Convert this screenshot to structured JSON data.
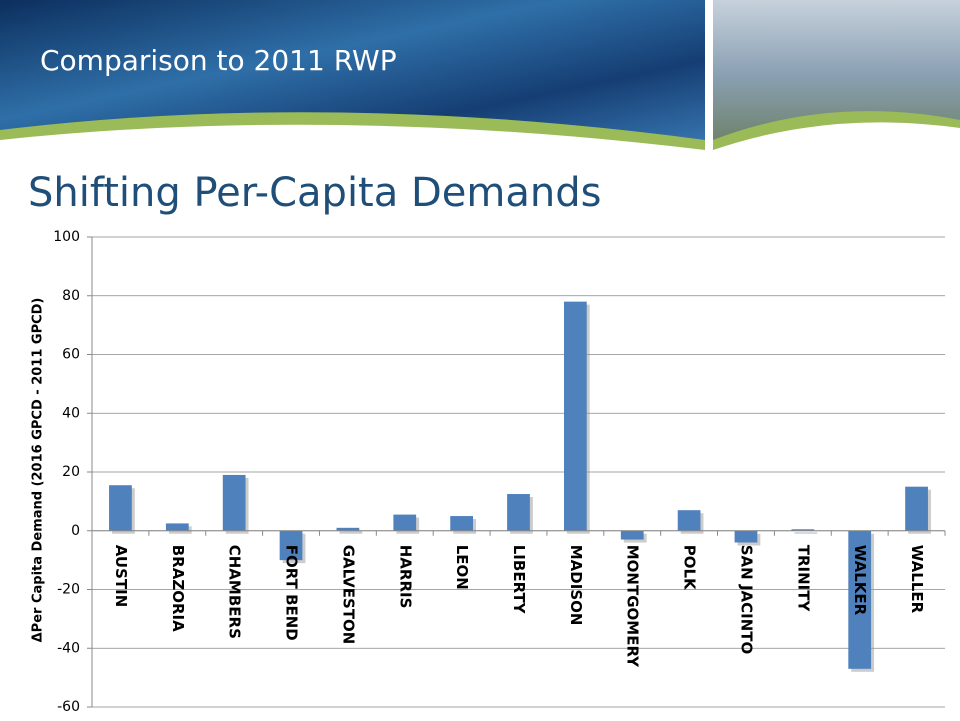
{
  "header": {
    "title": "Comparison to 2011 RWP"
  },
  "slide_title": "Shifting Per-Capita Demands",
  "chart_data": {
    "type": "bar",
    "y_label": "ΔPer Capita Demand (2016 GPCD - 2011 GPCD)",
    "categories": [
      "AUSTIN",
      "BRAZORIA",
      "CHAMBERS",
      "FORT BEND",
      "GALVESTON",
      "HARRIS",
      "LEON",
      "LIBERTY",
      "MADISON",
      "MONTGOMERY",
      "POLK",
      "SAN JACINTO",
      "TRINITY",
      "WALKER",
      "WALLER"
    ],
    "values": [
      15.5,
      2.5,
      19,
      -10,
      1,
      5.5,
      5,
      12.5,
      78,
      -3,
      7,
      -4,
      0.5,
      -47,
      15
    ],
    "color": "#4f81bd",
    "ylim": [
      -60,
      100
    ],
    "yticks": [
      -60,
      -40,
      -20,
      0,
      20,
      40,
      60,
      80,
      100
    ],
    "grid": true
  }
}
